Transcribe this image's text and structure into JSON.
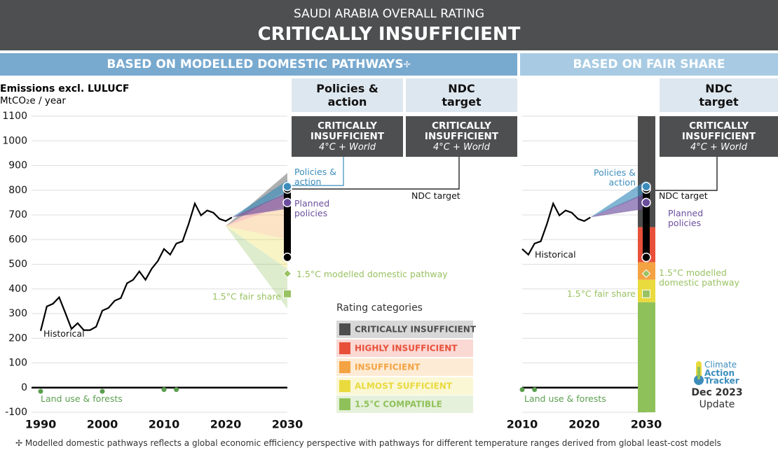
{
  "header": {
    "subtitle": "SAUDI ARABIA OVERALL RATING",
    "title": "CRITICALLY INSUFFICIENT"
  },
  "panels": {
    "left": "BASED ON MODELLED DOMESTIC PATHWAYS",
    "symbol": "✢",
    "right": "BASED ON FAIR SHARE"
  },
  "rating_boxes": [
    {
      "heading": "Policies & action",
      "rating": "CRITICALLY INSUFFICIENT",
      "note": "4°C + World"
    },
    {
      "heading": "NDC target",
      "rating": "CRITICALLY INSUFFICIENT",
      "note": "4°C + World"
    },
    {
      "heading": "NDC target",
      "rating": "CRITICALLY INSUFFICIENT",
      "note": "4°C + World"
    }
  ],
  "legend_title": "Rating categories",
  "rating_categories": [
    {
      "name": "CRITICALLY INSUFFICIENT",
      "color": "#4d4d4d"
    },
    {
      "name": "HIGHLY INSUFFICIENT",
      "color": "#e8503a"
    },
    {
      "name": "INSUFFICIENT",
      "color": "#f4a342"
    },
    {
      "name": "ALMOST SUFFICIENT",
      "color": "#e9da3e"
    },
    {
      "name": "1.5°C COMPATIBLE",
      "color": "#8fc15a"
    }
  ],
  "chart_data": [
    {
      "type": "line",
      "y_label": "Emissions excl. LULUCF",
      "y_unit": "MtCO₂e / year",
      "xlim": [
        1990,
        2030
      ],
      "xticks": [
        1990,
        2000,
        2010,
        2020,
        2030
      ],
      "ylim": [
        -100,
        1100
      ],
      "yticks": [
        -100,
        0,
        100,
        200,
        300,
        400,
        500,
        600,
        700,
        800,
        900,
        1000,
        1100
      ],
      "grid": true,
      "series": [
        {
          "name": "Historical",
          "color": "#000000",
          "x": [
            1990,
            1991,
            1992,
            1993,
            1994,
            1995,
            1996,
            1997,
            1998,
            1999,
            2000,
            2001,
            2002,
            2003,
            2004,
            2005,
            2006,
            2007,
            2008,
            2009,
            2010,
            2011,
            2012,
            2013,
            2014,
            2015,
            2016,
            2017,
            2018,
            2019,
            2020,
            2021
          ],
          "values": [
            230,
            329,
            340,
            366,
            303,
            238,
            261,
            233,
            233,
            247,
            312,
            323,
            352,
            363,
            423,
            437,
            471,
            437,
            482,
            513,
            562,
            539,
            584,
            593,
            664,
            746,
            698,
            718,
            709,
            684,
            675,
            690
          ]
        },
        {
          "name": "Land use & forests",
          "color": "#5b9e4f",
          "x": [
            1990,
            2000,
            2010,
            2012
          ],
          "values": [
            -15,
            -15,
            -8,
            -8
          ]
        }
      ],
      "rating_fan": {
        "start_year": 2020,
        "start": 655,
        "bounds": [
          [
            800,
            870
          ],
          [
            740,
            800
          ],
          [
            600,
            740
          ],
          [
            480,
            600
          ],
          [
            320,
            480
          ]
        ]
      },
      "projections": [
        {
          "name": "Policies & action",
          "color": "#3c8dbc",
          "value": 815,
          "range": [
            785,
            840
          ]
        },
        {
          "name": "Planned policies",
          "color": "#6b4f9e",
          "value": 750,
          "range": [
            725,
            790
          ]
        }
      ],
      "ndc_target": {
        "name": "NDC target",
        "range": [
          528,
          805
        ]
      },
      "benchmarks": [
        {
          "name": "1.5°C modelled domestic pathway",
          "color": "#99c262",
          "value": 462,
          "shape": "diamond"
        },
        {
          "name": "1.5°C fair share",
          "color": "#99c262",
          "value": 380,
          "shape": "square"
        }
      ]
    },
    {
      "type": "line",
      "xlim": [
        2010,
        2030
      ],
      "xticks": [
        2010,
        2020,
        2030
      ],
      "ylim": [
        -100,
        1100
      ],
      "yticks": [
        -100,
        0,
        100,
        200,
        300,
        400,
        500,
        600,
        700,
        800,
        900,
        1000,
        1100
      ],
      "grid": true,
      "series": [
        {
          "name": "Historical",
          "color": "#000000",
          "x": [
            2010,
            2011,
            2012,
            2013,
            2014,
            2015,
            2016,
            2017,
            2018,
            2019,
            2020,
            2021
          ],
          "values": [
            562,
            539,
            584,
            593,
            664,
            746,
            698,
            718,
            709,
            684,
            675,
            690
          ]
        },
        {
          "name": "Land use & forests",
          "color": "#5b9e4f",
          "x": [
            2010,
            2012
          ],
          "values": [
            -8,
            -8
          ]
        }
      ],
      "rating_bar": {
        "bounds": [
          [
            650,
            1100
          ],
          [
            508,
            650
          ],
          [
            437,
            508
          ],
          [
            346,
            437
          ],
          [
            -100,
            346
          ]
        ]
      },
      "projections": [
        {
          "name": "Policies & action",
          "color": "#3c8dbc",
          "value": 815,
          "range": [
            785,
            840
          ]
        },
        {
          "name": "Planned policies",
          "color": "#6b4f9e",
          "value": 750,
          "range": [
            725,
            790
          ]
        }
      ],
      "ndc_target": {
        "name": "NDC target",
        "range": [
          528,
          805
        ]
      },
      "benchmarks": [
        {
          "name": "1.5°C modelled domestic pathway",
          "color": "#99c262",
          "value": 462,
          "shape": "diamond"
        },
        {
          "name": "1.5°C fair share",
          "color": "#99c262",
          "value": 380,
          "shape": "square"
        }
      ]
    }
  ],
  "logo": {
    "lines": [
      "Climate",
      "Action",
      "Tracker"
    ],
    "date": "Dec 2023",
    "update": "Update"
  },
  "footnote": "Modelled domestic pathways reflects a global economic efficiency perspective with pathways for different temperature ranges derived from global least-cost models"
}
